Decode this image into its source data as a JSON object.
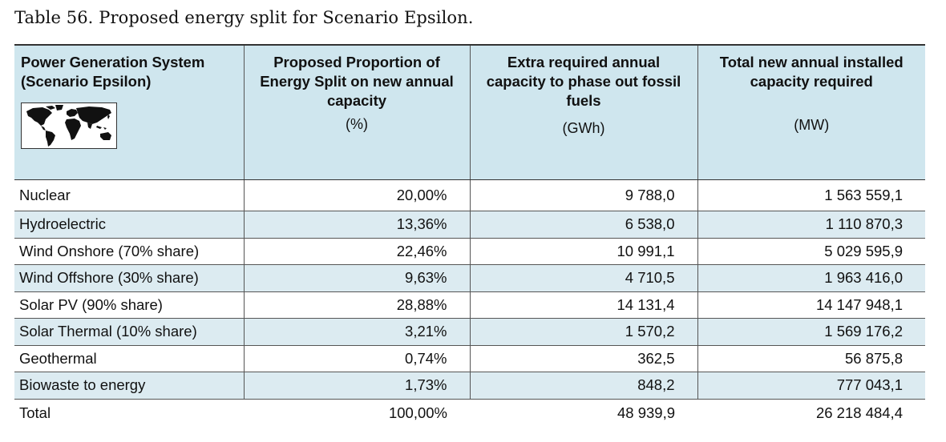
{
  "caption": "Table 56. Proposed energy split for Scenario Epsilon.",
  "header": {
    "col1_title": "Power Generation System (Scenario Epsilon)",
    "col1_icon": "world-map-icon",
    "col2_title": "Proposed Proportion of Energy Split on new annual capacity",
    "col2_unit": "(%)",
    "col3_title": "Extra required annual capacity to phase out fossil fuels",
    "col3_unit": "(GWh)",
    "col4_title": "Total new annual installed capacity required",
    "col4_unit": "(MW)"
  },
  "rows": [
    {
      "system": "Nuclear",
      "proportion": "20,00%",
      "extra_capacity": "9 788,0",
      "total_installed": "1 563 559,1"
    },
    {
      "system": "Hydroelectric",
      "proportion": "13,36%",
      "extra_capacity": "6 538,0",
      "total_installed": "1 110 870,3"
    },
    {
      "system": "Wind Onshore (70% share)",
      "proportion": "22,46%",
      "extra_capacity": "10 991,1",
      "total_installed": "5 029 595,9"
    },
    {
      "system": "Wind Offshore (30% share)",
      "proportion": "9,63%",
      "extra_capacity": "4 710,5",
      "total_installed": "1 963 416,0"
    },
    {
      "system": "Solar PV (90% share)",
      "proportion": "28,88%",
      "extra_capacity": "14 131,4",
      "total_installed": "14 147 948,1"
    },
    {
      "system": "Solar Thermal (10% share)",
      "proportion": "3,21%",
      "extra_capacity": "1 570,2",
      "total_installed": "1 569 176,2"
    },
    {
      "system": "Geothermal",
      "proportion": "0,74%",
      "extra_capacity": "362,5",
      "total_installed": "56 875,8"
    },
    {
      "system": "Biowaste to energy",
      "proportion": "1,73%",
      "extra_capacity": "848,2",
      "total_installed": "777 043,1"
    }
  ],
  "total": {
    "system": "Total",
    "proportion": "100,00%",
    "extra_capacity": "48 939,9",
    "total_installed": "26 218 484,4"
  },
  "colors": {
    "header_bg": "#cfe6ee",
    "row_shade": "#dcebf1"
  }
}
